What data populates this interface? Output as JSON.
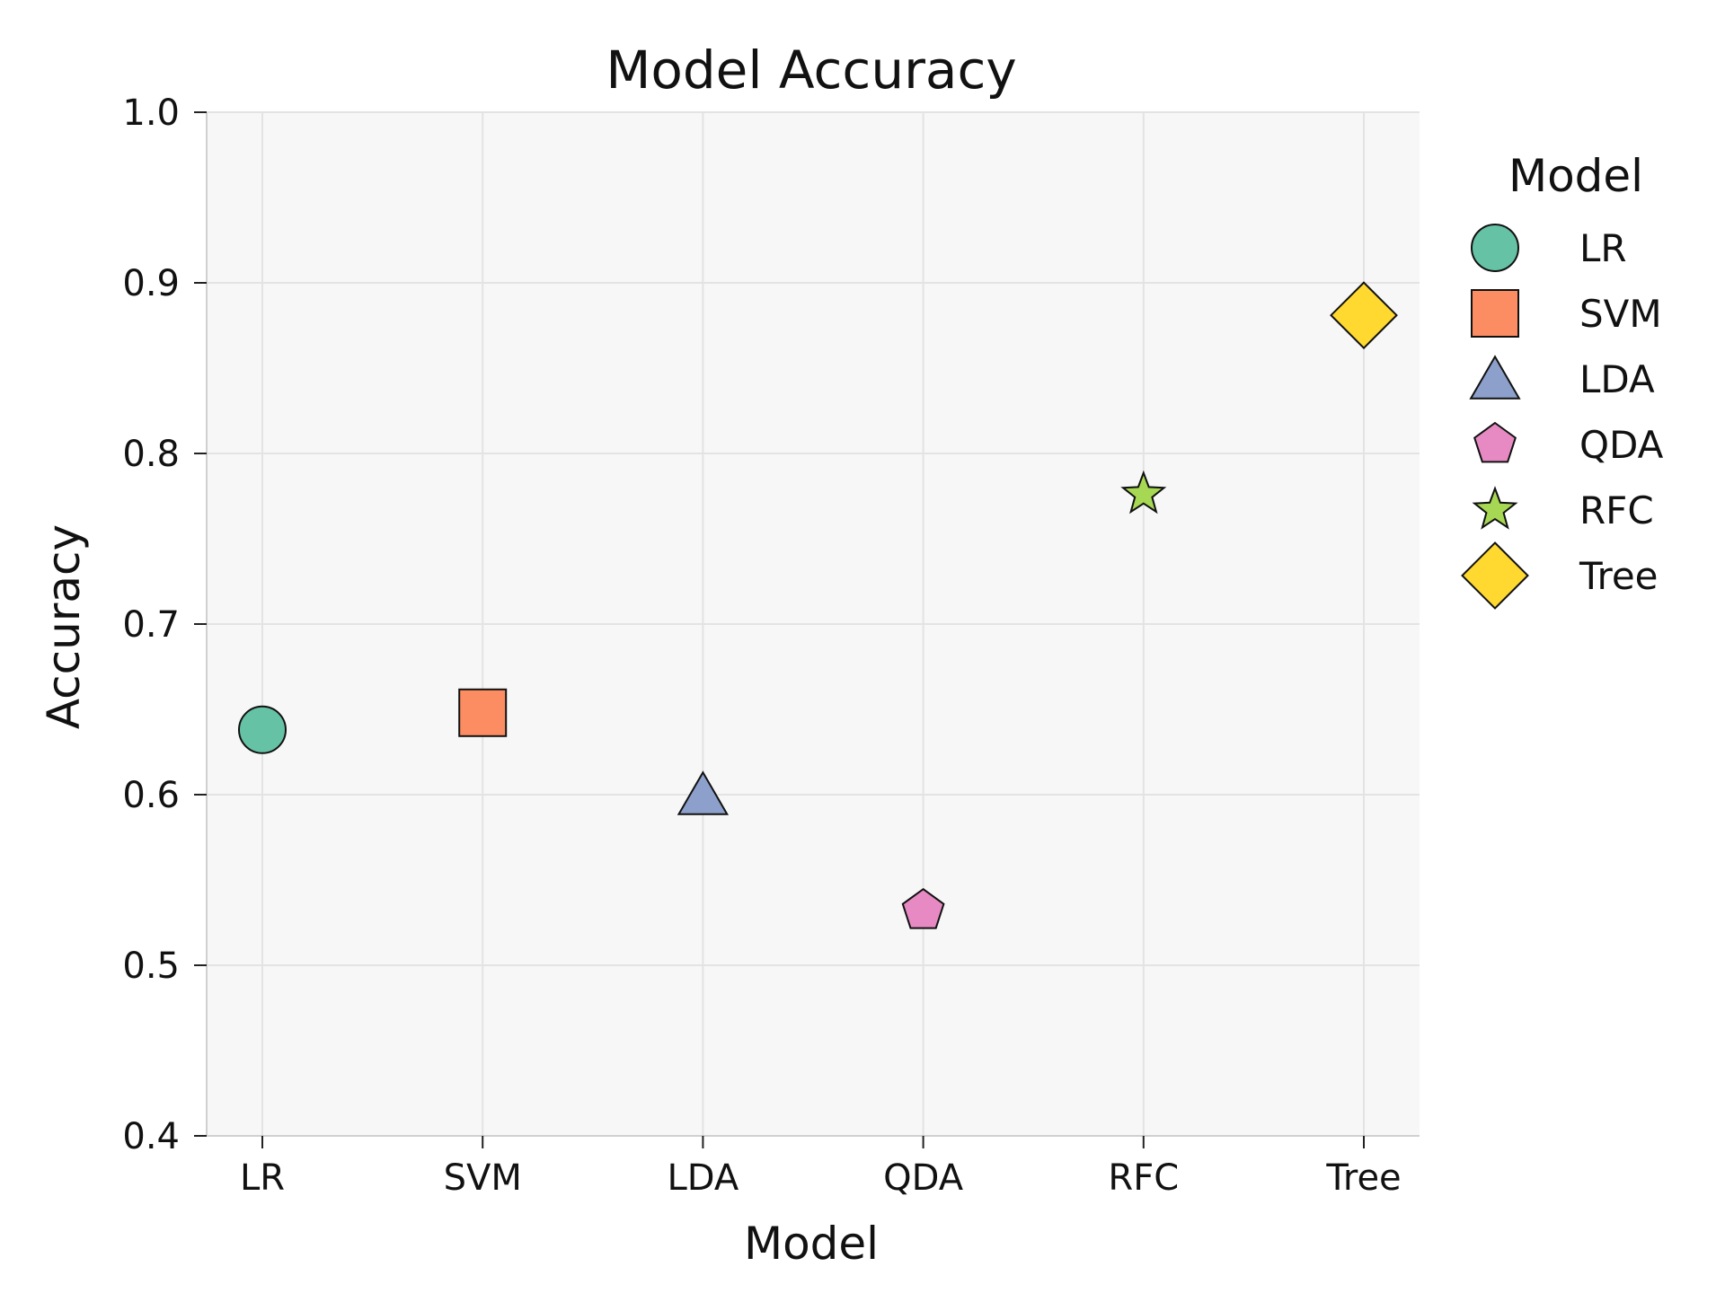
{
  "chart_data": {
    "type": "scatter",
    "title": "Model Accuracy",
    "xlabel": "Model",
    "ylabel": "Accuracy",
    "categories": [
      "LR",
      "SVM",
      "LDA",
      "QDA",
      "RFC",
      "Tree"
    ],
    "ylim": [
      0.4,
      1.0
    ],
    "yticks": [
      "0.4",
      "0.5",
      "0.6",
      "0.7",
      "0.8",
      "0.9",
      "1.0"
    ],
    "grid": true,
    "legend": {
      "title": "Model",
      "placement": "outside-right"
    },
    "series": [
      {
        "name": "LR",
        "x": "LR",
        "y": 0.638,
        "marker": "circle",
        "color": "#66c2a5"
      },
      {
        "name": "SVM",
        "x": "SVM",
        "y": 0.648,
        "marker": "square",
        "color": "#fc8d62"
      },
      {
        "name": "LDA",
        "x": "LDA",
        "y": 0.6,
        "marker": "triangle",
        "color": "#8da0cb"
      },
      {
        "name": "QDA",
        "x": "QDA",
        "y": 0.532,
        "marker": "pentagon",
        "color": "#e78ac3"
      },
      {
        "name": "RFC",
        "x": "RFC",
        "y": 0.776,
        "marker": "star",
        "color": "#a6d854"
      },
      {
        "name": "Tree",
        "x": "Tree",
        "y": 0.881,
        "marker": "diamond",
        "color": "#ffd92f"
      }
    ],
    "colors": {
      "plot_background": "#f7f7f7",
      "grid": "#e3e3e3",
      "axis": "#d0d0d0",
      "marker_edge": "#111111"
    }
  }
}
